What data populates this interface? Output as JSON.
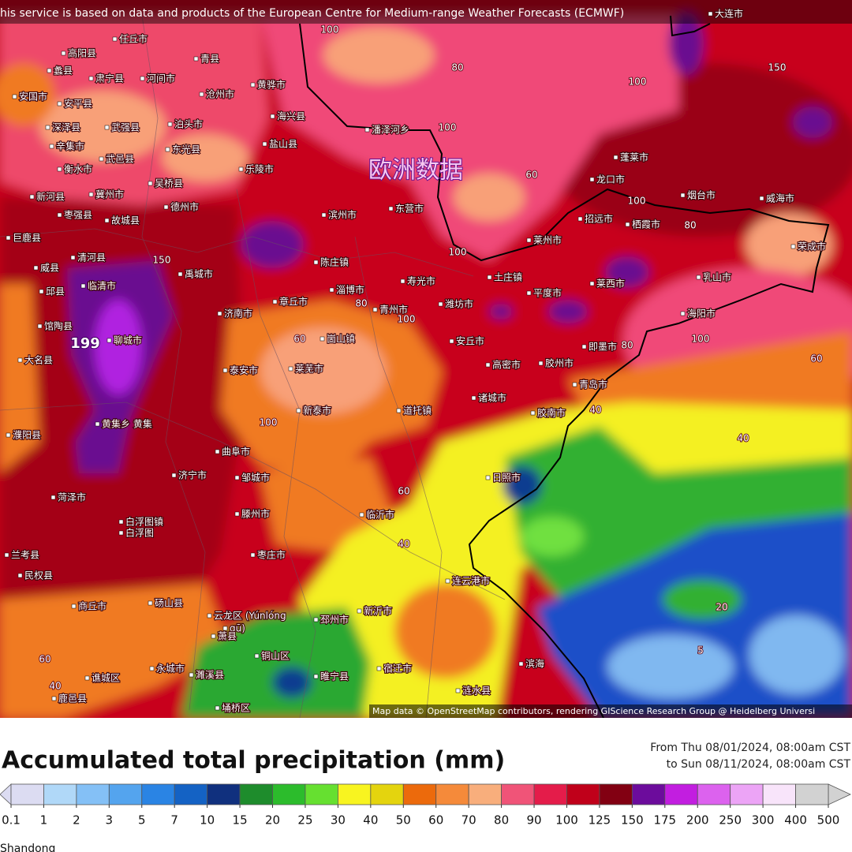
{
  "header": {
    "attribution": "his service is based on data and products of the European Centre for Medium-range Weather Forecasts (ECMWF)"
  },
  "watermark": "欧洲数据",
  "map": {
    "cities": [
      "大连市",
      "任丘市",
      "高阳县",
      "青县",
      "蠡县",
      "肃宁县",
      "河间市",
      "黄骅市",
      "安国市",
      "沧州市",
      "安平县",
      "海兴县",
      "深泽县",
      "武强县",
      "泊头市",
      "盐山县",
      "辛集市",
      "东光县",
      "武邑县",
      "衡水市",
      "乐陵市",
      "潘泽河乡",
      "吴桥县",
      "冀州市",
      "新河县",
      "德州市",
      "枣强县",
      "故城县",
      "滨州市",
      "东营市",
      "龙口市",
      "蓬莱市",
      "烟台市",
      "威海市",
      "招远市",
      "栖霞市",
      "莱州市",
      "荣成市",
      "巨鹿县",
      "清河县",
      "陈庄镇",
      "威县",
      "临清市",
      "禹城市",
      "寿光市",
      "土庄镇",
      "莱西市",
      "乳山市",
      "邱县",
      "淄博市",
      "平度市",
      "章丘市",
      "济南市",
      "青州市",
      "潍坊市",
      "海阳市",
      "馆陶县",
      "聊城市",
      "崮山镇",
      "安丘市",
      "即墨市",
      "大名县",
      "泰安市",
      "莱芜市",
      "高密市",
      "胶州市",
      "青岛市",
      "新泰市",
      "诸城市",
      "道托镇",
      "胶南市",
      "濮阳县",
      "黄集乡 黄集",
      "曲阜市",
      "济宁市",
      "邹城市",
      "日照市",
      "菏泽市",
      "白浮图镇",
      "白浮图",
      "滕州市",
      "临沂市",
      "枣庄市",
      "兰考县",
      "民权县",
      "连云港市",
      "商丘市",
      "砀山县",
      "云龙区 (Yúnlóng",
      "qū)",
      "邳州市",
      "新沂市",
      "萧县",
      "铜山区",
      "宿迁市",
      "滨海",
      "永城市",
      "谯城区",
      "濉溪县",
      "睢宁县",
      "鹿邑县",
      "涟水县",
      "埇桥区"
    ],
    "contour_labels": [
      100,
      80,
      100,
      150,
      100,
      60,
      100,
      80,
      100,
      150,
      80,
      100,
      60,
      80,
      100,
      60,
      40,
      40,
      100,
      60,
      40,
      20,
      5,
      60,
      40
    ],
    "max_value": 199,
    "credit": "Map data © OpenStreetMap contributors, rendering GIScience Research Group @ Heidelberg Universi"
  },
  "legend": {
    "title": "Accumulated total precipitation (mm)",
    "period_from": "From Thu 08/01/2024, 08:00am CST",
    "period_to": "to Sun 08/11/2024, 08:00am CST",
    "levels": [
      0.1,
      1,
      2,
      3,
      5,
      7,
      10,
      15,
      20,
      25,
      30,
      40,
      50,
      60,
      70,
      80,
      90,
      100,
      125,
      150,
      175,
      200,
      250,
      300,
      400,
      500
    ],
    "colors": [
      "#dcdcf2",
      "#b0d8f8",
      "#84c0f6",
      "#54a4ee",
      "#2a84e4",
      "#1462c4",
      "#10307e",
      "#1e8c2c",
      "#2cbc2c",
      "#66e030",
      "#f8f420",
      "#e4d40e",
      "#ec6a0c",
      "#f58a3a",
      "#f8ae7c",
      "#f05478",
      "#e41c4a",
      "#c0001a",
      "#820012",
      "#6c0c9c",
      "#c21ee0",
      "#dc62ee",
      "#eca4f6",
      "#f8e4fa",
      "#d2d2d2"
    ]
  },
  "region": "Shandong"
}
